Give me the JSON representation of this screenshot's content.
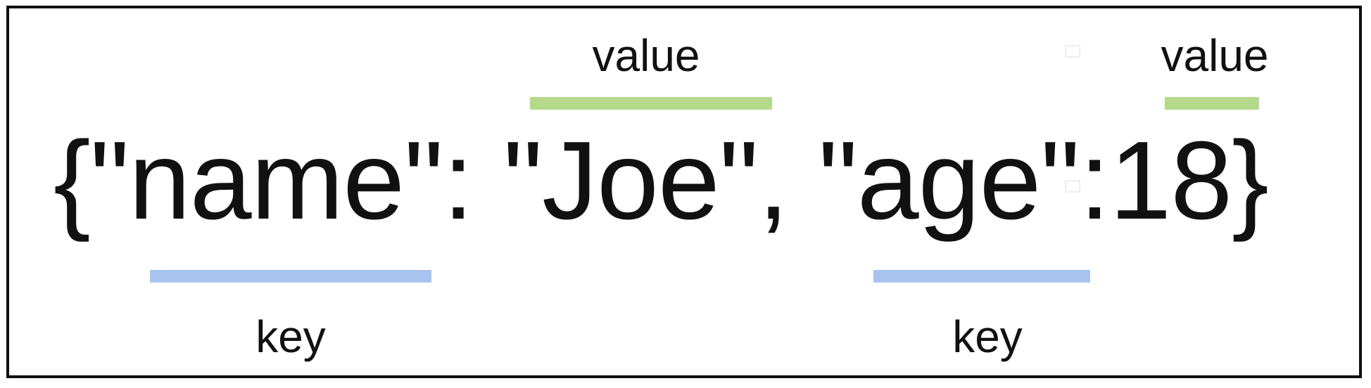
{
  "json_example": {
    "open_brace": "{",
    "key1": "\"name\"",
    "colon1": ": ",
    "value1": "\"Joe\"",
    "comma": ", ",
    "key2": "\"age\"",
    "colon2": ":",
    "value2": "18",
    "close_brace": "}"
  },
  "annotations": {
    "value_label_1": "value",
    "value_label_2": "value",
    "key_label_1": "key",
    "key_label_2": "key"
  },
  "colors": {
    "value_bar": "#b5d98a",
    "key_bar": "#a9c3ef",
    "text": "#111111",
    "border": "#111111"
  }
}
